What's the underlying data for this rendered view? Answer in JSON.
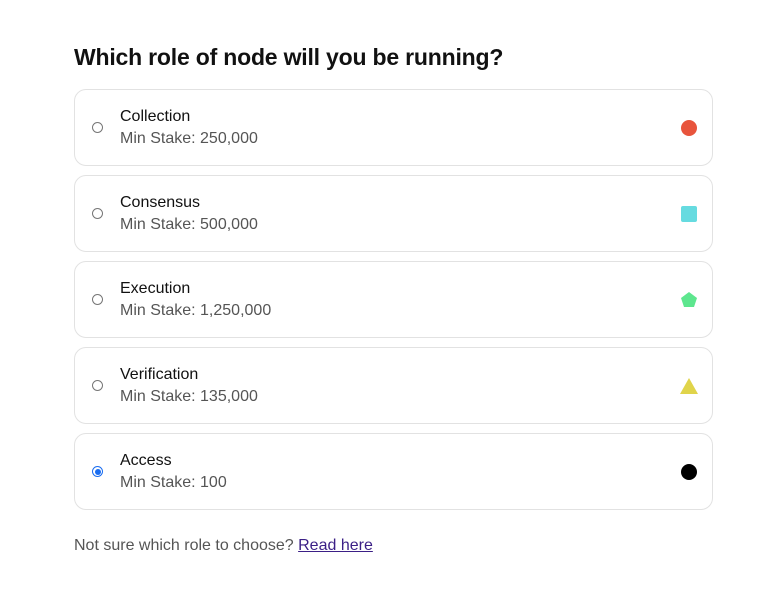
{
  "heading": "Which role of node will you be running?",
  "roles": [
    {
      "name": "Collection",
      "min_stake": "Min Stake: 250,000",
      "selected": false,
      "shape": "circle",
      "color": "#e8543c"
    },
    {
      "name": "Consensus",
      "min_stake": "Min Stake: 500,000",
      "selected": false,
      "shape": "square",
      "color": "#66dbe0"
    },
    {
      "name": "Execution",
      "min_stake": "Min Stake: 1,250,000",
      "selected": false,
      "shape": "pentagon",
      "color": "#5de68e"
    },
    {
      "name": "Verification",
      "min_stake": "Min Stake: 135,000",
      "selected": false,
      "shape": "triangle",
      "color": "#e0d44a"
    },
    {
      "name": "Access",
      "min_stake": "Min Stake: 100",
      "selected": true,
      "shape": "circle",
      "color": "#000000"
    }
  ],
  "footer": {
    "text": "Not sure which role to choose?",
    "link": "Read here"
  }
}
